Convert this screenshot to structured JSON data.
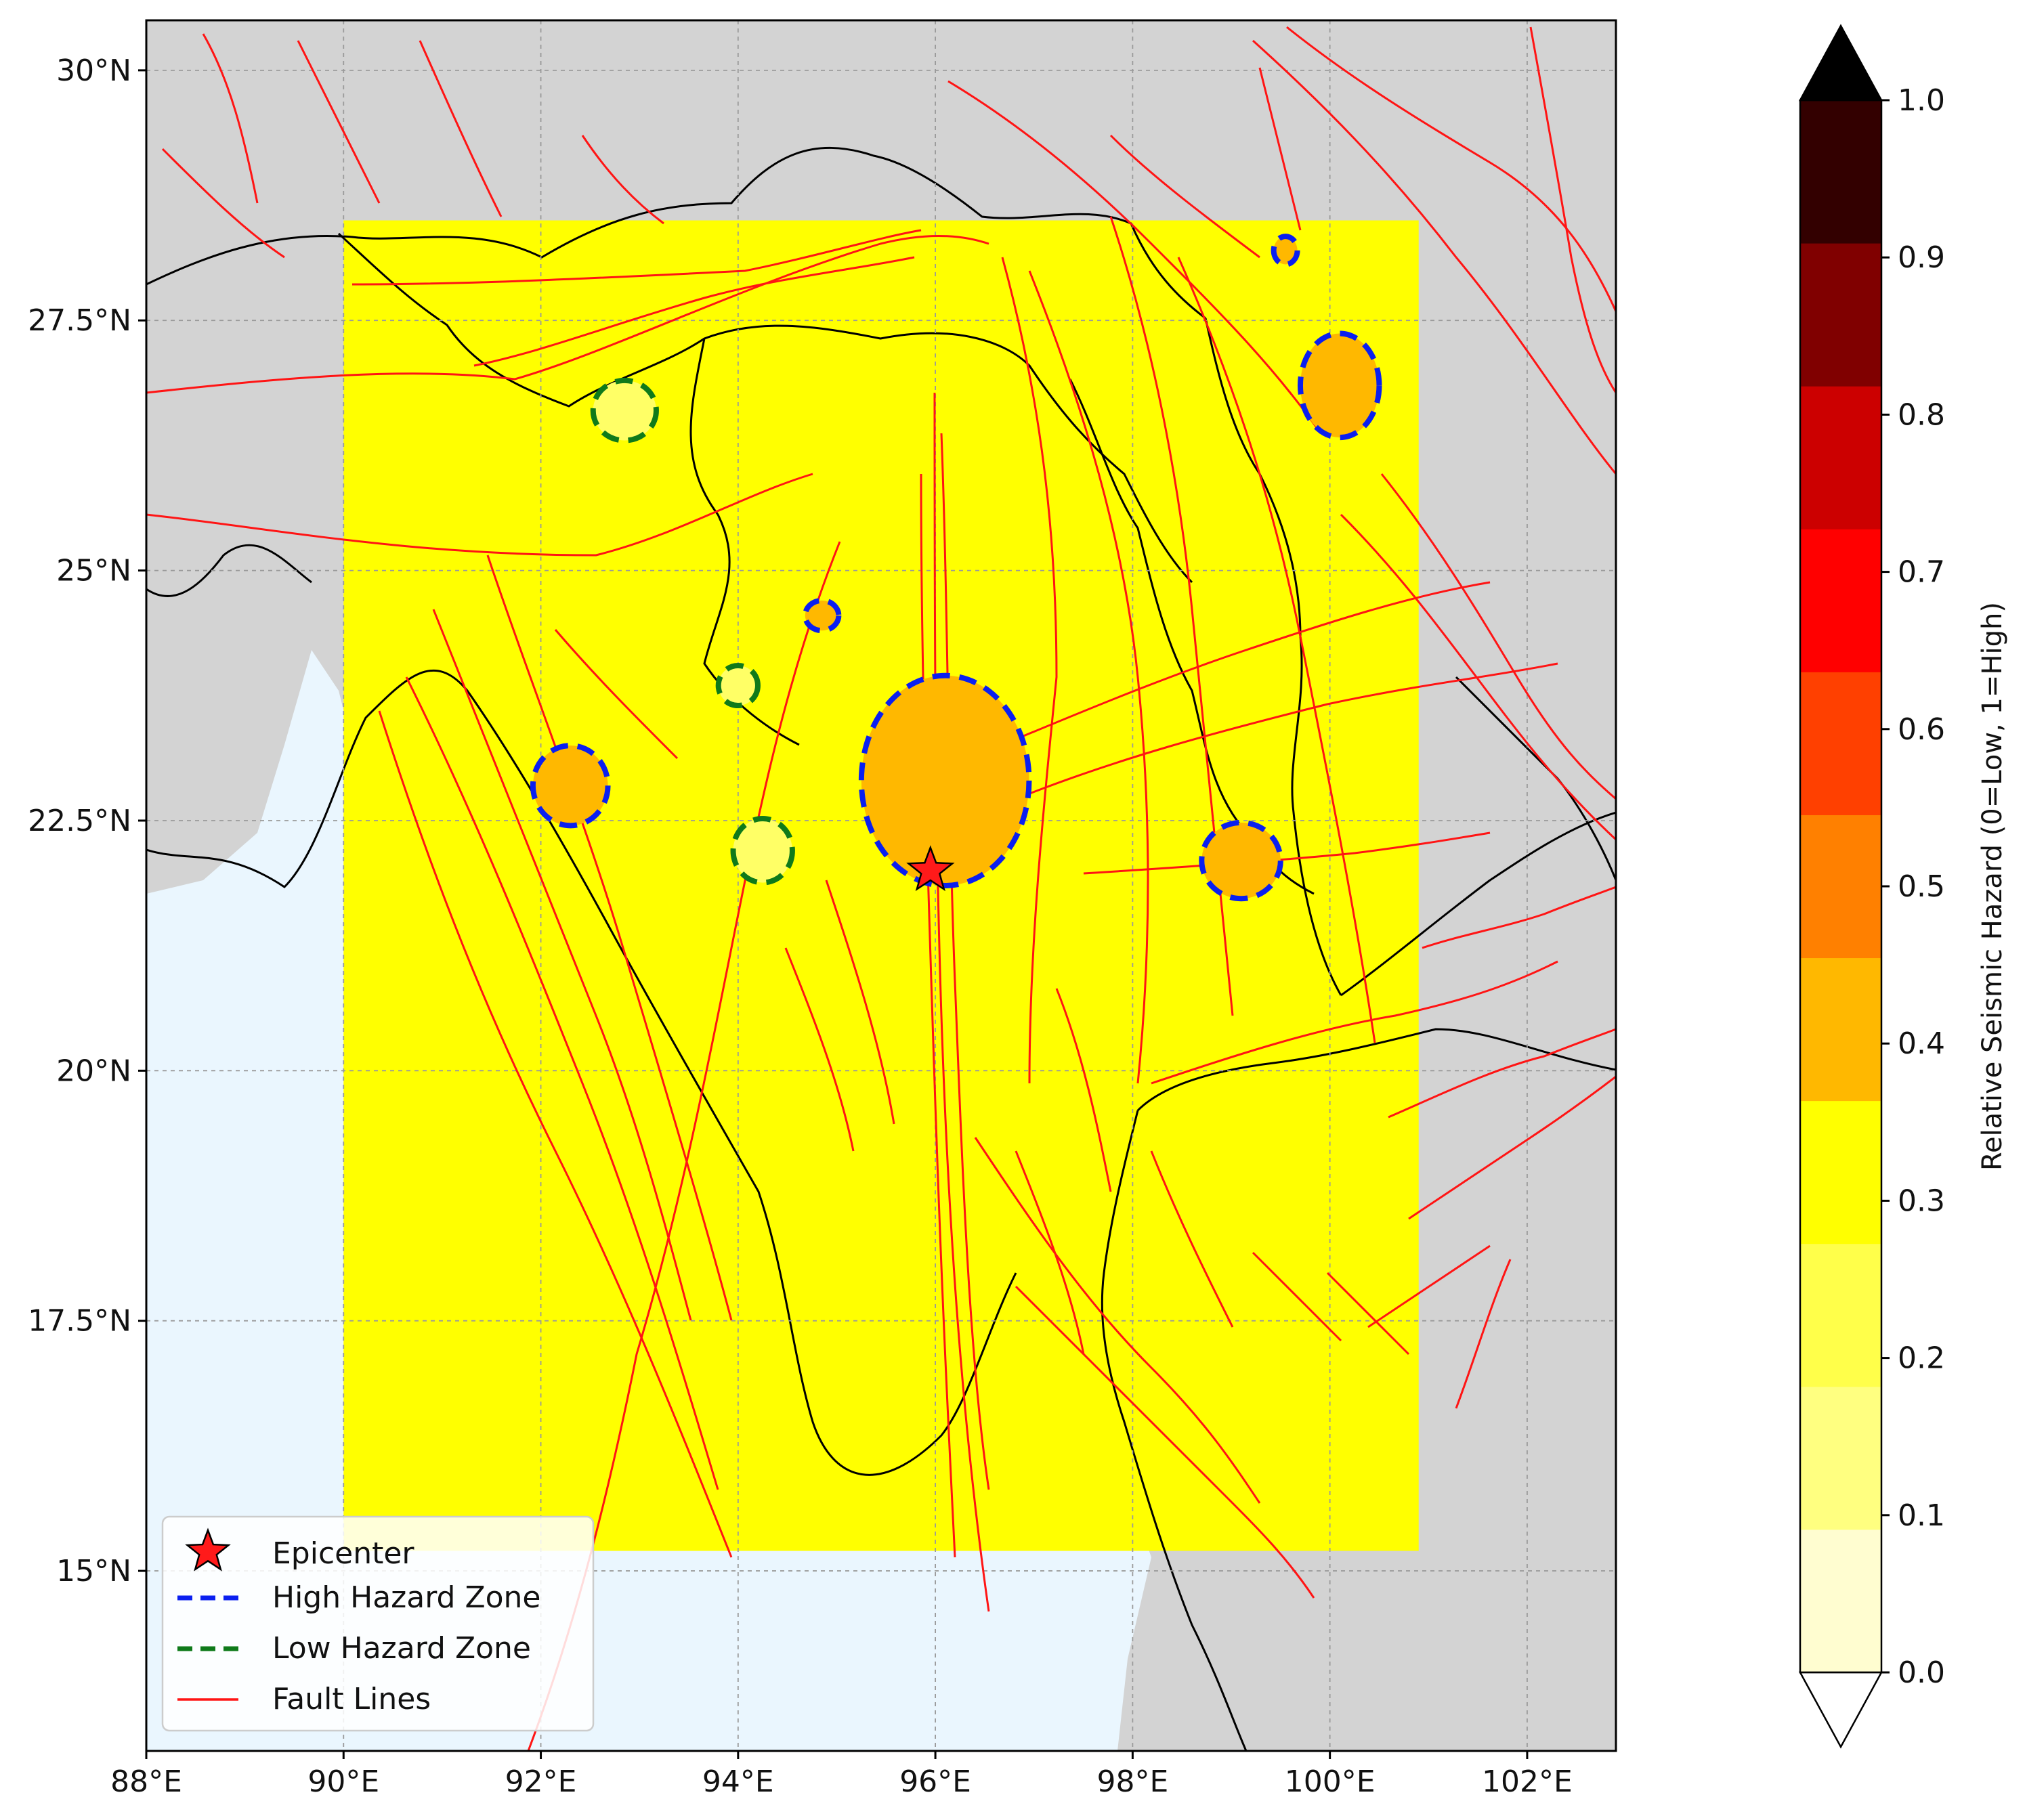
{
  "map": {
    "lon_range": [
      88,
      102.9
    ],
    "lat_range": [
      13.2,
      30.5
    ],
    "gridlines": true,
    "x_ticks": [
      {
        "value": 88,
        "label": "88°E"
      },
      {
        "value": 90,
        "label": "90°E"
      },
      {
        "value": 92,
        "label": "92°E"
      },
      {
        "value": 94,
        "label": "94°E"
      },
      {
        "value": 96,
        "label": "96°E"
      },
      {
        "value": 98,
        "label": "98°E"
      },
      {
        "value": 100,
        "label": "100°E"
      },
      {
        "value": 102,
        "label": "102°E"
      }
    ],
    "y_ticks": [
      {
        "value": 30,
        "label": "30°N"
      },
      {
        "value": 27.5,
        "label": "27.5°N"
      },
      {
        "value": 25,
        "label": "25°N"
      },
      {
        "value": 22.5,
        "label": "22.5°N"
      },
      {
        "value": 20,
        "label": "20°N"
      },
      {
        "value": 17.5,
        "label": "17.5°N"
      },
      {
        "value": 15,
        "label": "15°N"
      }
    ],
    "hazard_grid": {
      "lon": [
        90,
        100.9
      ],
      "lat": [
        15.2,
        28.5
      ],
      "value": 0.25
    },
    "epicenter": {
      "lon": 95.95,
      "lat": 22.0
    },
    "high_hazard_zones": [
      {
        "lon": 96.1,
        "lat": 22.9,
        "r_lon": 0.85,
        "r_lat": 1.05,
        "value": 0.35
      },
      {
        "lon": 92.3,
        "lat": 22.85,
        "r_lon": 0.38,
        "r_lat": 0.4,
        "value": 0.35
      },
      {
        "lon": 99.1,
        "lat": 22.1,
        "r_lon": 0.4,
        "r_lat": 0.38,
        "value": 0.35
      },
      {
        "lon": 100.1,
        "lat": 26.85,
        "r_lon": 0.4,
        "r_lat": 0.52,
        "value": 0.35
      },
      {
        "lon": 94.85,
        "lat": 24.55,
        "r_lon": 0.17,
        "r_lat": 0.15,
        "value": 0.3
      },
      {
        "lon": 99.55,
        "lat": 28.2,
        "r_lon": 0.12,
        "r_lat": 0.14,
        "value": 0.3
      }
    ],
    "low_hazard_zones": [
      {
        "lon": 92.85,
        "lat": 26.6,
        "r_lon": 0.32,
        "r_lat": 0.3
      },
      {
        "lon": 94.25,
        "lat": 22.2,
        "r_lon": 0.3,
        "r_lat": 0.32
      },
      {
        "lon": 94.0,
        "lat": 23.85,
        "r_lon": 0.2,
        "r_lat": 0.2
      }
    ],
    "colors": {
      "land": "#d3d3d3",
      "ocean": "#eaf6fe",
      "hazard": "#ffff00",
      "high_zone": "#ffb800",
      "high_line": "#0a1ff0",
      "low_line": "#0f7a1a",
      "fault": "#ff1414",
      "star": "#ff1a1a"
    }
  },
  "legend": {
    "items": [
      {
        "label": "Epicenter",
        "marker": "star"
      },
      {
        "label": "High Hazard Zone",
        "marker": "dashed-blue"
      },
      {
        "label": "Low Hazard Zone",
        "marker": "dashed-green"
      },
      {
        "label": "Fault Lines",
        "marker": "solid-red"
      }
    ]
  },
  "colorbar": {
    "label": "Relative Seismic Hazard (0=Low, 1=High)",
    "ticks": [
      "0.0",
      "0.1",
      "0.2",
      "0.3",
      "0.4",
      "0.5",
      "0.6",
      "0.7",
      "0.8",
      "0.9",
      "1.0"
    ],
    "colors": [
      "#fffdd0",
      "#ffff80",
      "#ffff4a",
      "#ffff00",
      "#ffb800",
      "#ff8000",
      "#ff4000",
      "#ff0000",
      "#cc0000",
      "#800000",
      "#330000"
    ],
    "extend_min_color": "#ffffff",
    "extend_max_color": "#000000"
  },
  "chart_data": {
    "type": "heatmap",
    "title": "",
    "xlabel": "",
    "ylabel": "",
    "xlim": [
      88,
      102.9
    ],
    "ylim": [
      13.2,
      30.5
    ],
    "series": [
      {
        "name": "Epicenter",
        "x": [
          95.95
        ],
        "y": [
          22.0
        ]
      },
      {
        "name": "High Hazard Zone",
        "x": [
          96.1,
          92.3,
          99.1,
          100.1,
          94.85,
          99.55
        ],
        "y": [
          22.9,
          22.85,
          22.1,
          26.85,
          24.55,
          28.2
        ]
      },
      {
        "name": "Low Hazard Zone",
        "x": [
          92.85,
          94.25,
          94.0
        ],
        "y": [
          26.6,
          22.2,
          23.85
        ]
      }
    ],
    "colorbar_range": [
      0,
      1
    ],
    "colorbar_label": "Relative Seismic Hazard (0=Low, 1=High)"
  }
}
